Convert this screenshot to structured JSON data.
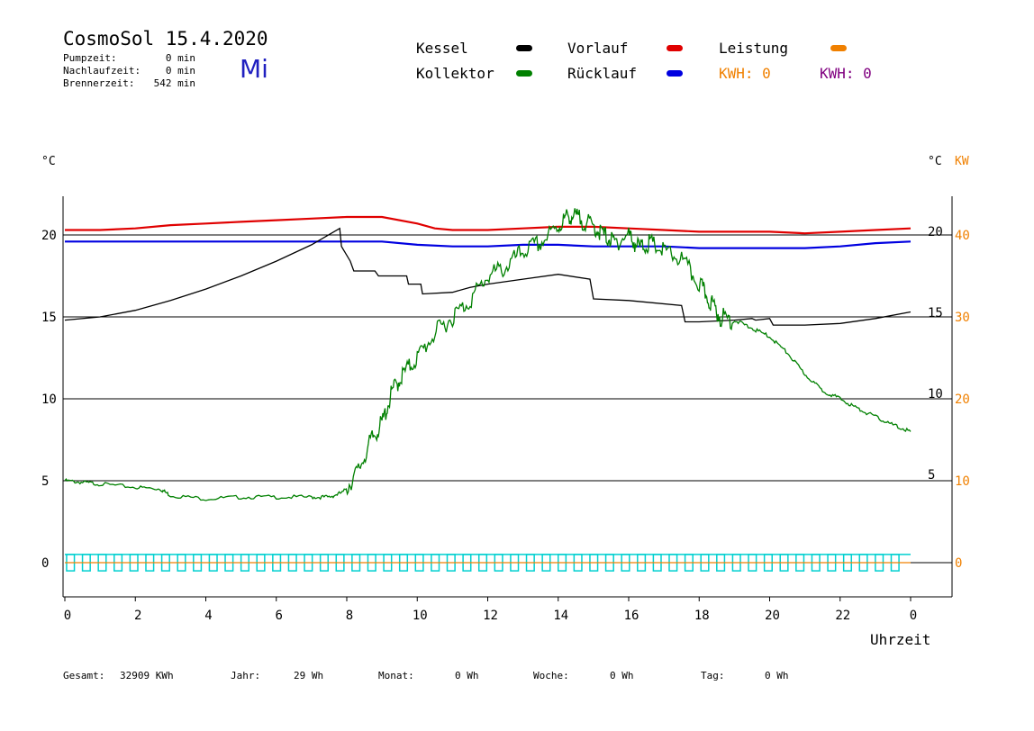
{
  "header": {
    "title": "CosmoSol 15.4.2020",
    "day": "Mi",
    "stats": [
      {
        "label": "Pumpzeit:",
        "value": "0 min"
      },
      {
        "label": "Nachlaufzeit:",
        "value": "0 min"
      },
      {
        "label": "Brennerzeit:",
        "value": "542 min"
      }
    ]
  },
  "legend": {
    "kessel": "Kessel",
    "kollektor": "Kollektor",
    "vorlauf": "Vorlauf",
    "ruecklauf": "Rücklauf",
    "leistung": "Leistung",
    "kwh1": "KWH: 0",
    "kwh2": "KWH: 0"
  },
  "colors": {
    "kessel": "#000000",
    "kollektor": "#008000",
    "vorlauf": "#e00000",
    "ruecklauf": "#0000e0",
    "leistung": "#f08000",
    "kwh2": "#800080",
    "pump": "#00d0d0",
    "axis_right_kw": "#f08000"
  },
  "units": {
    "left": "°C",
    "right_c": "°C",
    "right_kw": "KW",
    "xlabel": "Uhrzeit"
  },
  "footer": {
    "gesamt_label": "Gesamt:",
    "gesamt_value": "32909 KWh",
    "jahr_label": "Jahr:",
    "jahr_value": "29 Wh",
    "monat_label": "Monat:",
    "monat_value": "0 Wh",
    "woche_label": "Woche:",
    "woche_value": "0 Wh",
    "tag_label": "Tag:",
    "tag_value": "0 Wh"
  },
  "chart_data": {
    "type": "line",
    "xlabel": "Uhrzeit",
    "ylabel": "°C",
    "x_ticks": [
      "0",
      "2",
      "4",
      "6",
      "8",
      "10",
      "12",
      "14",
      "16",
      "18",
      "20",
      "22",
      "0"
    ],
    "xlim": [
      0,
      24
    ],
    "ylim": [
      -1.5,
      22.5
    ],
    "y_ticks_left": [
      0,
      5,
      10,
      15,
      20
    ],
    "y_ticks_right_c": [
      5,
      10,
      15,
      20
    ],
    "y_ticks_right_kw": [
      0,
      10,
      20,
      30,
      40
    ],
    "kw_range": [
      0,
      40
    ],
    "grid_y": [
      5,
      10,
      15,
      20
    ],
    "series": [
      {
        "name": "Vorlauf",
        "color": "#e00000",
        "x": [
          0,
          1,
          2,
          3,
          4,
          5,
          6,
          7,
          8,
          9,
          10,
          10.5,
          11,
          12,
          13,
          14,
          15,
          16,
          17,
          18,
          19,
          20,
          21,
          22,
          23,
          24
        ],
        "y": [
          20.3,
          20.3,
          20.4,
          20.6,
          20.7,
          20.8,
          20.9,
          21.0,
          21.1,
          21.1,
          20.7,
          20.4,
          20.3,
          20.3,
          20.4,
          20.5,
          20.5,
          20.4,
          20.3,
          20.2,
          20.2,
          20.2,
          20.1,
          20.2,
          20.3,
          20.4
        ]
      },
      {
        "name": "Rücklauf",
        "color": "#0000e0",
        "x": [
          0,
          1,
          2,
          3,
          4,
          5,
          6,
          7,
          8,
          9,
          10,
          11,
          12,
          13,
          14,
          15,
          16,
          17,
          18,
          19,
          20,
          21,
          22,
          23,
          24
        ],
        "y": [
          19.6,
          19.6,
          19.6,
          19.6,
          19.6,
          19.6,
          19.6,
          19.6,
          19.6,
          19.6,
          19.4,
          19.3,
          19.3,
          19.4,
          19.4,
          19.3,
          19.3,
          19.3,
          19.2,
          19.2,
          19.2,
          19.2,
          19.3,
          19.5,
          19.6
        ]
      },
      {
        "name": "Kessel",
        "color": "#000000",
        "x": [
          0,
          1,
          2,
          3,
          4,
          5,
          6,
          7,
          7.8,
          7.85,
          8.1,
          8.2,
          8.8,
          8.9,
          9.7,
          9.75,
          10.1,
          10.15,
          11,
          11.5,
          12,
          13,
          14,
          14.9,
          15,
          16,
          17.5,
          17.6,
          18,
          19,
          19.5,
          19.6,
          20,
          20.1,
          21,
          22,
          23,
          24
        ],
        "y": [
          14.8,
          15.0,
          15.4,
          16.0,
          16.7,
          17.5,
          18.4,
          19.4,
          20.4,
          19.3,
          18.4,
          17.8,
          17.8,
          17.5,
          17.5,
          17.0,
          17.0,
          16.4,
          16.5,
          16.8,
          17.0,
          17.3,
          17.6,
          17.3,
          16.1,
          16.0,
          15.7,
          14.7,
          14.7,
          14.8,
          14.9,
          14.8,
          14.9,
          14.5,
          14.5,
          14.6,
          14.9,
          15.3
        ]
      },
      {
        "name": "Kollektor",
        "color": "#008000",
        "x": [
          0,
          0.5,
          1,
          2,
          2.7,
          3,
          4,
          5,
          6,
          7,
          7.5,
          7.9,
          8.3,
          8.7,
          9,
          9.3,
          9.6,
          10,
          10.5,
          11,
          11.5,
          12,
          12.5,
          13,
          13.5,
          14,
          14.3,
          14.6,
          15,
          15.3,
          15.6,
          16,
          16.3,
          16.6,
          17,
          17.5,
          18,
          18.3,
          18.6,
          19,
          19.5,
          20,
          20.5,
          21,
          21.5,
          22,
          22.5,
          23,
          23.5,
          24
        ],
        "y": [
          5.0,
          4.9,
          4.8,
          4.6,
          4.5,
          4.1,
          3.9,
          4.0,
          4.0,
          4.0,
          4.0,
          4.3,
          5.5,
          7.5,
          8.5,
          10.5,
          11.5,
          12.5,
          14.0,
          15.0,
          16.0,
          17.5,
          18.0,
          19.0,
          19.5,
          20.5,
          21.2,
          21.0,
          20.5,
          20.0,
          19.5,
          20.0,
          19.2,
          19.5,
          19.0,
          18.5,
          17.0,
          16.0,
          15.0,
          14.8,
          14.3,
          13.8,
          12.8,
          11.5,
          10.5,
          10.0,
          9.4,
          8.9,
          8.4,
          8.0
        ]
      },
      {
        "name": "Leistung",
        "color": "#f08000",
        "x": [
          0,
          24
        ],
        "y": [
          0,
          0
        ]
      }
    ],
    "pump_pulses": {
      "color": "#00d0d0",
      "level_top": 0.5,
      "level_bottom": -0.5,
      "start_hours": [
        0.05,
        0.5,
        0.95,
        1.4,
        1.85,
        2.3,
        2.75,
        3.2,
        3.65,
        4.1,
        4.55,
        5.0,
        5.45,
        5.9,
        6.35,
        6.8,
        7.25,
        7.7,
        8.15,
        8.6,
        9.05,
        9.5,
        9.95,
        10.4,
        10.85,
        11.3,
        11.75,
        12.2,
        12.65,
        13.1,
        13.55,
        14.0,
        14.45,
        14.9,
        15.35,
        15.8,
        16.25,
        16.7,
        17.15,
        17.6,
        18.05,
        18.5,
        18.95,
        19.4,
        19.85,
        20.3,
        20.75,
        21.2,
        21.65,
        22.1,
        22.55,
        23.0,
        23.45
      ],
      "width_hours": 0.22
    }
  }
}
